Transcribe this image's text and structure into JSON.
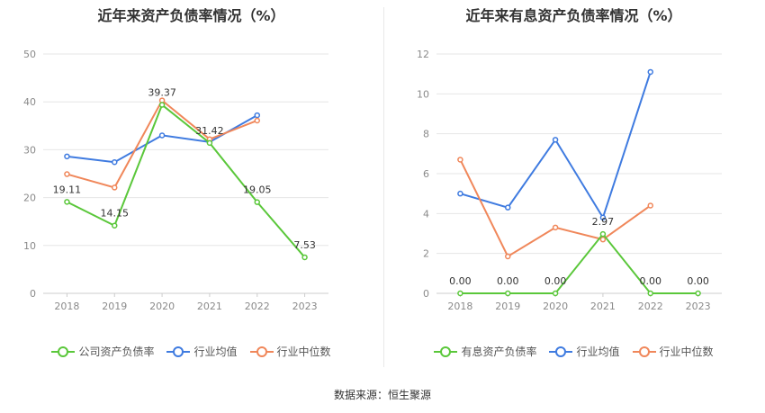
{
  "chart_data": [
    {
      "type": "line",
      "title": "近年来资产负债率情况（%）",
      "categories": [
        "2018",
        "2019",
        "2020",
        "2021",
        "2022",
        "2023"
      ],
      "ylim": [
        0,
        50
      ],
      "yticks": [
        0,
        10,
        20,
        30,
        40,
        50
      ],
      "grid": true,
      "legend_position": "bottom",
      "series": [
        {
          "name": "公司资产负债率",
          "color": "#5ac73a",
          "values": [
            19.11,
            14.15,
            39.37,
            31.42,
            19.05,
            7.53
          ],
          "labels": [
            "19.11",
            "14.15",
            "39.37",
            "31.42",
            "19.05",
            "7.53"
          ]
        },
        {
          "name": "行业均值",
          "color": "#3f7be0",
          "values": [
            28.6,
            27.4,
            33.0,
            31.6,
            37.2,
            null
          ]
        },
        {
          "name": "行业中位数",
          "color": "#f0875a",
          "values": [
            24.9,
            22.1,
            40.3,
            32.2,
            36.1,
            null
          ]
        }
      ]
    },
    {
      "type": "line",
      "title": "近年来有息资产负债率情况（%）",
      "categories": [
        "2018",
        "2019",
        "2020",
        "2021",
        "2022",
        "2023"
      ],
      "ylim": [
        0,
        12
      ],
      "yticks": [
        0,
        2,
        4,
        6,
        8,
        10,
        12
      ],
      "grid": true,
      "legend_position": "bottom",
      "series": [
        {
          "name": "有息资产负债率",
          "color": "#5ac73a",
          "values": [
            0.0,
            0.0,
            0.0,
            2.97,
            0.0,
            0.0
          ],
          "labels": [
            "0.00",
            "0.00",
            "0.00",
            "2.97",
            "0.00",
            "0.00"
          ]
        },
        {
          "name": "行业均值",
          "color": "#3f7be0",
          "values": [
            5.0,
            4.3,
            7.7,
            3.8,
            11.1,
            null
          ]
        },
        {
          "name": "行业中位数",
          "color": "#f0875a",
          "values": [
            6.7,
            1.85,
            3.3,
            2.7,
            4.4,
            null
          ]
        }
      ]
    }
  ],
  "source": "数据来源：恒生聚源"
}
